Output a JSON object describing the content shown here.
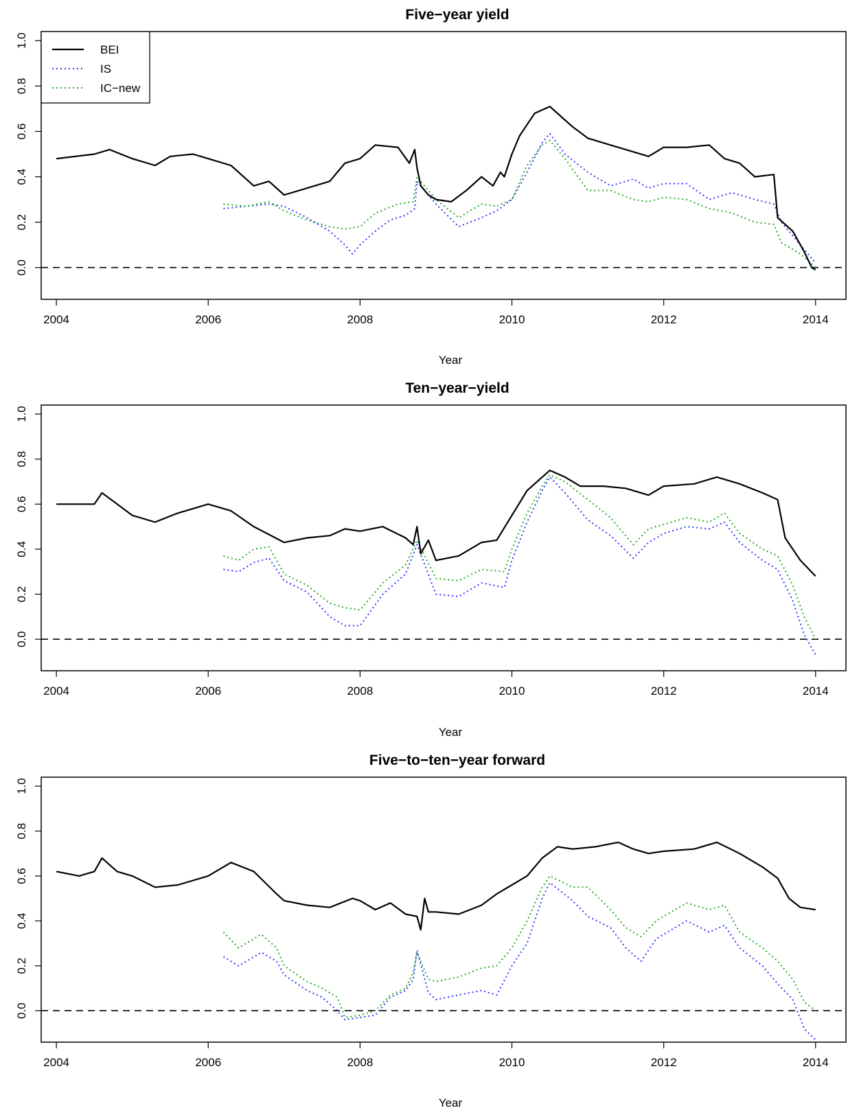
{
  "chart_data": [
    {
      "type": "line",
      "title": "Five−year yield",
      "xlabel": "Year",
      "ylabel": "",
      "xlim": [
        2003.8,
        2014.4
      ],
      "ylim": [
        -0.14,
        1.04
      ],
      "xticks": [
        "2004",
        "2006",
        "2008",
        "2010",
        "2012",
        "2014"
      ],
      "yticks": [
        "0.0",
        "0.2",
        "0.4",
        "0.6",
        "0.8",
        "1.0"
      ],
      "reference_line": {
        "y": 0.0,
        "style": "dashed"
      },
      "legend": {
        "placement": "top-left",
        "entries": [
          "BEI",
          "IS",
          "IC−new"
        ]
      },
      "series": [
        {
          "name": "BEI",
          "color": "#000000",
          "style": "solid",
          "x": [
            2004.0,
            2004.5,
            2004.7,
            2005.0,
            2005.3,
            2005.5,
            2005.8,
            2006.0,
            2006.3,
            2006.6,
            2006.8,
            2007.0,
            2007.3,
            2007.6,
            2007.8,
            2008.0,
            2008.2,
            2008.5,
            2008.65,
            2008.72,
            2008.75,
            2008.8,
            2008.9,
            2009.0,
            2009.2,
            2009.4,
            2009.6,
            2009.75,
            2009.85,
            2009.9,
            2010.0,
            2010.1,
            2010.3,
            2010.5,
            2010.6,
            2010.8,
            2011.0,
            2011.3,
            2011.6,
            2011.8,
            2012.0,
            2012.3,
            2012.6,
            2012.8,
            2013.0,
            2013.2,
            2013.45,
            2013.5,
            2013.7,
            2013.85,
            2013.95,
            2014.0
          ],
          "y": [
            0.48,
            0.5,
            0.52,
            0.48,
            0.45,
            0.49,
            0.5,
            0.48,
            0.45,
            0.36,
            0.38,
            0.32,
            0.35,
            0.38,
            0.46,
            0.48,
            0.54,
            0.53,
            0.46,
            0.52,
            0.44,
            0.36,
            0.32,
            0.3,
            0.29,
            0.34,
            0.4,
            0.36,
            0.42,
            0.4,
            0.5,
            0.58,
            0.68,
            0.71,
            0.68,
            0.62,
            0.57,
            0.54,
            0.51,
            0.49,
            0.53,
            0.53,
            0.54,
            0.48,
            0.46,
            0.4,
            0.41,
            0.22,
            0.16,
            0.07,
            0.0,
            -0.01
          ]
        },
        {
          "name": "IS",
          "color": "#3333ff",
          "style": "dotted",
          "x": [
            2006.2,
            2006.5,
            2006.8,
            2007.0,
            2007.3,
            2007.6,
            2007.8,
            2007.9,
            2008.0,
            2008.2,
            2008.4,
            2008.6,
            2008.72,
            2008.75,
            2009.0,
            2009.3,
            2009.6,
            2009.8,
            2010.0,
            2010.2,
            2010.4,
            2010.5,
            2010.7,
            2011.0,
            2011.3,
            2011.6,
            2011.8,
            2012.0,
            2012.3,
            2012.6,
            2012.9,
            2013.2,
            2013.45,
            2013.55,
            2013.8,
            2014.0
          ],
          "y": [
            0.26,
            0.27,
            0.28,
            0.27,
            0.22,
            0.16,
            0.1,
            0.06,
            0.1,
            0.16,
            0.21,
            0.23,
            0.26,
            0.38,
            0.28,
            0.18,
            0.22,
            0.25,
            0.3,
            0.42,
            0.55,
            0.59,
            0.5,
            0.42,
            0.36,
            0.39,
            0.35,
            0.37,
            0.37,
            0.3,
            0.33,
            0.3,
            0.28,
            0.2,
            0.1,
            0.02
          ]
        },
        {
          "name": "IC−new",
          "color": "#22aa22",
          "style": "dotted",
          "x": [
            2006.2,
            2006.5,
            2006.8,
            2007.0,
            2007.3,
            2007.6,
            2007.8,
            2008.0,
            2008.2,
            2008.5,
            2008.7,
            2008.75,
            2009.0,
            2009.3,
            2009.6,
            2009.8,
            2010.0,
            2010.2,
            2010.4,
            2010.5,
            2010.7,
            2011.0,
            2011.3,
            2011.6,
            2011.8,
            2012.0,
            2012.3,
            2012.6,
            2012.9,
            2013.2,
            2013.45,
            2013.55,
            2013.8,
            2014.0
          ],
          "y": [
            0.28,
            0.27,
            0.29,
            0.25,
            0.21,
            0.18,
            0.17,
            0.18,
            0.24,
            0.28,
            0.29,
            0.4,
            0.3,
            0.22,
            0.28,
            0.27,
            0.3,
            0.45,
            0.54,
            0.56,
            0.48,
            0.34,
            0.34,
            0.3,
            0.29,
            0.31,
            0.3,
            0.26,
            0.24,
            0.2,
            0.19,
            0.11,
            0.06,
            0.0
          ]
        }
      ]
    },
    {
      "type": "line",
      "title": "Ten−year−yield",
      "xlabel": "Year",
      "ylabel": "",
      "xlim": [
        2003.8,
        2014.4
      ],
      "ylim": [
        -0.14,
        1.04
      ],
      "xticks": [
        "2004",
        "2006",
        "2008",
        "2010",
        "2012",
        "2014"
      ],
      "yticks": [
        "0.0",
        "0.2",
        "0.4",
        "0.6",
        "0.8",
        "1.0"
      ],
      "reference_line": {
        "y": 0.0,
        "style": "dashed"
      },
      "series": [
        {
          "name": "BEI",
          "color": "#000000",
          "style": "solid",
          "x": [
            2004.0,
            2004.5,
            2004.6,
            2004.8,
            2005.0,
            2005.3,
            2005.6,
            2006.0,
            2006.3,
            2006.6,
            2007.0,
            2007.3,
            2007.6,
            2007.8,
            2008.0,
            2008.3,
            2008.6,
            2008.7,
            2008.75,
            2008.8,
            2008.9,
            2009.0,
            2009.3,
            2009.6,
            2009.8,
            2010.0,
            2010.2,
            2010.5,
            2010.7,
            2010.9,
            2011.2,
            2011.5,
            2011.8,
            2012.0,
            2012.4,
            2012.7,
            2013.0,
            2013.3,
            2013.5,
            2013.6,
            2013.8,
            2014.0
          ],
          "y": [
            0.6,
            0.6,
            0.65,
            0.6,
            0.55,
            0.52,
            0.56,
            0.6,
            0.57,
            0.5,
            0.43,
            0.45,
            0.46,
            0.49,
            0.48,
            0.5,
            0.45,
            0.42,
            0.5,
            0.38,
            0.44,
            0.35,
            0.37,
            0.43,
            0.44,
            0.55,
            0.66,
            0.75,
            0.72,
            0.68,
            0.68,
            0.67,
            0.64,
            0.68,
            0.69,
            0.72,
            0.69,
            0.65,
            0.62,
            0.45,
            0.35,
            0.28
          ]
        },
        {
          "name": "IS",
          "color": "#3333ff",
          "style": "dotted",
          "x": [
            2006.2,
            2006.4,
            2006.6,
            2006.8,
            2007.0,
            2007.3,
            2007.6,
            2007.8,
            2008.0,
            2008.3,
            2008.6,
            2008.75,
            2009.0,
            2009.3,
            2009.6,
            2009.9,
            2010.0,
            2010.2,
            2010.4,
            2010.5,
            2010.7,
            2011.0,
            2011.3,
            2011.6,
            2011.8,
            2012.0,
            2012.3,
            2012.6,
            2012.8,
            2013.0,
            2013.3,
            2013.5,
            2013.7,
            2013.85,
            2014.0
          ],
          "y": [
            0.31,
            0.3,
            0.34,
            0.36,
            0.26,
            0.21,
            0.1,
            0.06,
            0.06,
            0.2,
            0.29,
            0.42,
            0.2,
            0.19,
            0.25,
            0.23,
            0.35,
            0.52,
            0.66,
            0.72,
            0.65,
            0.53,
            0.46,
            0.36,
            0.43,
            0.47,
            0.5,
            0.49,
            0.52,
            0.43,
            0.35,
            0.31,
            0.17,
            0.02,
            -0.07
          ]
        },
        {
          "name": "IC−new",
          "color": "#22aa22",
          "style": "dotted",
          "x": [
            2006.2,
            2006.4,
            2006.6,
            2006.8,
            2007.0,
            2007.3,
            2007.6,
            2007.8,
            2008.0,
            2008.3,
            2008.6,
            2008.75,
            2009.0,
            2009.3,
            2009.6,
            2009.9,
            2010.0,
            2010.2,
            2010.4,
            2010.5,
            2010.7,
            2011.0,
            2011.3,
            2011.6,
            2011.8,
            2012.0,
            2012.3,
            2012.6,
            2012.8,
            2013.0,
            2013.3,
            2013.5,
            2013.7,
            2013.85,
            2014.0
          ],
          "y": [
            0.37,
            0.35,
            0.4,
            0.41,
            0.29,
            0.24,
            0.16,
            0.14,
            0.13,
            0.25,
            0.33,
            0.44,
            0.27,
            0.26,
            0.31,
            0.3,
            0.4,
            0.56,
            0.68,
            0.73,
            0.7,
            0.62,
            0.54,
            0.42,
            0.49,
            0.51,
            0.54,
            0.52,
            0.56,
            0.47,
            0.4,
            0.37,
            0.24,
            0.1,
            0.0
          ]
        }
      ]
    },
    {
      "type": "line",
      "title": "Five−to−ten−year forward",
      "xlabel": "Year",
      "ylabel": "",
      "xlim": [
        2003.8,
        2014.4
      ],
      "ylim": [
        -0.14,
        1.04
      ],
      "xticks": [
        "2004",
        "2006",
        "2008",
        "2010",
        "2012",
        "2014"
      ],
      "yticks": [
        "0.0",
        "0.2",
        "0.4",
        "0.6",
        "0.8",
        "1.0"
      ],
      "reference_line": {
        "y": 0.0,
        "style": "dashed"
      },
      "series": [
        {
          "name": "BEI",
          "color": "#000000",
          "style": "solid",
          "x": [
            2004.0,
            2004.3,
            2004.5,
            2004.6,
            2004.8,
            2005.0,
            2005.3,
            2005.6,
            2006.0,
            2006.3,
            2006.6,
            2006.9,
            2007.0,
            2007.3,
            2007.6,
            2007.9,
            2008.0,
            2008.2,
            2008.4,
            2008.6,
            2008.75,
            2008.8,
            2008.85,
            2008.9,
            2009.0,
            2009.3,
            2009.6,
            2009.8,
            2010.0,
            2010.2,
            2010.4,
            2010.6,
            2010.8,
            2011.1,
            2011.4,
            2011.6,
            2011.8,
            2012.0,
            2012.4,
            2012.7,
            2013.0,
            2013.3,
            2013.5,
            2013.65,
            2013.8,
            2014.0
          ],
          "y": [
            0.62,
            0.6,
            0.62,
            0.68,
            0.62,
            0.6,
            0.55,
            0.56,
            0.6,
            0.66,
            0.62,
            0.52,
            0.49,
            0.47,
            0.46,
            0.5,
            0.49,
            0.45,
            0.48,
            0.43,
            0.42,
            0.36,
            0.5,
            0.44,
            0.44,
            0.43,
            0.47,
            0.52,
            0.56,
            0.6,
            0.68,
            0.73,
            0.72,
            0.73,
            0.75,
            0.72,
            0.7,
            0.71,
            0.72,
            0.75,
            0.7,
            0.64,
            0.59,
            0.5,
            0.46,
            0.45
          ]
        },
        {
          "name": "IS",
          "color": "#3333ff",
          "style": "dotted",
          "x": [
            2006.2,
            2006.4,
            2006.7,
            2006.9,
            2007.0,
            2007.3,
            2007.5,
            2007.7,
            2007.8,
            2008.0,
            2008.2,
            2008.4,
            2008.6,
            2008.7,
            2008.75,
            2008.9,
            2009.0,
            2009.3,
            2009.6,
            2009.8,
            2010.0,
            2010.2,
            2010.4,
            2010.5,
            2010.8,
            2011.0,
            2011.3,
            2011.5,
            2011.7,
            2011.9,
            2012.1,
            2012.3,
            2012.6,
            2012.8,
            2013.0,
            2013.3,
            2013.5,
            2013.7,
            2013.85,
            2014.0
          ],
          "y": [
            0.24,
            0.2,
            0.26,
            0.22,
            0.16,
            0.09,
            0.06,
            0.0,
            -0.04,
            -0.03,
            -0.02,
            0.06,
            0.09,
            0.14,
            0.27,
            0.08,
            0.05,
            0.07,
            0.09,
            0.07,
            0.2,
            0.3,
            0.5,
            0.57,
            0.49,
            0.42,
            0.37,
            0.28,
            0.22,
            0.32,
            0.36,
            0.4,
            0.35,
            0.38,
            0.28,
            0.2,
            0.12,
            0.05,
            -0.08,
            -0.13
          ]
        },
        {
          "name": "IC−new",
          "color": "#22aa22",
          "style": "dotted",
          "x": [
            2006.2,
            2006.4,
            2006.7,
            2006.9,
            2007.0,
            2007.3,
            2007.5,
            2007.7,
            2007.8,
            2008.0,
            2008.2,
            2008.4,
            2008.6,
            2008.7,
            2008.75,
            2008.9,
            2009.0,
            2009.3,
            2009.6,
            2009.8,
            2010.0,
            2010.2,
            2010.4,
            2010.5,
            2010.8,
            2011.0,
            2011.3,
            2011.5,
            2011.7,
            2011.9,
            2012.1,
            2012.3,
            2012.6,
            2012.8,
            2013.0,
            2013.3,
            2013.5,
            2013.7,
            2013.85,
            2014.0
          ],
          "y": [
            0.35,
            0.28,
            0.34,
            0.28,
            0.2,
            0.13,
            0.1,
            0.06,
            -0.03,
            -0.02,
            0.0,
            0.07,
            0.1,
            0.17,
            0.26,
            0.14,
            0.13,
            0.15,
            0.19,
            0.2,
            0.28,
            0.4,
            0.55,
            0.6,
            0.55,
            0.55,
            0.45,
            0.37,
            0.33,
            0.4,
            0.44,
            0.48,
            0.45,
            0.47,
            0.35,
            0.28,
            0.22,
            0.14,
            0.04,
            0.0
          ]
        }
      ]
    }
  ]
}
